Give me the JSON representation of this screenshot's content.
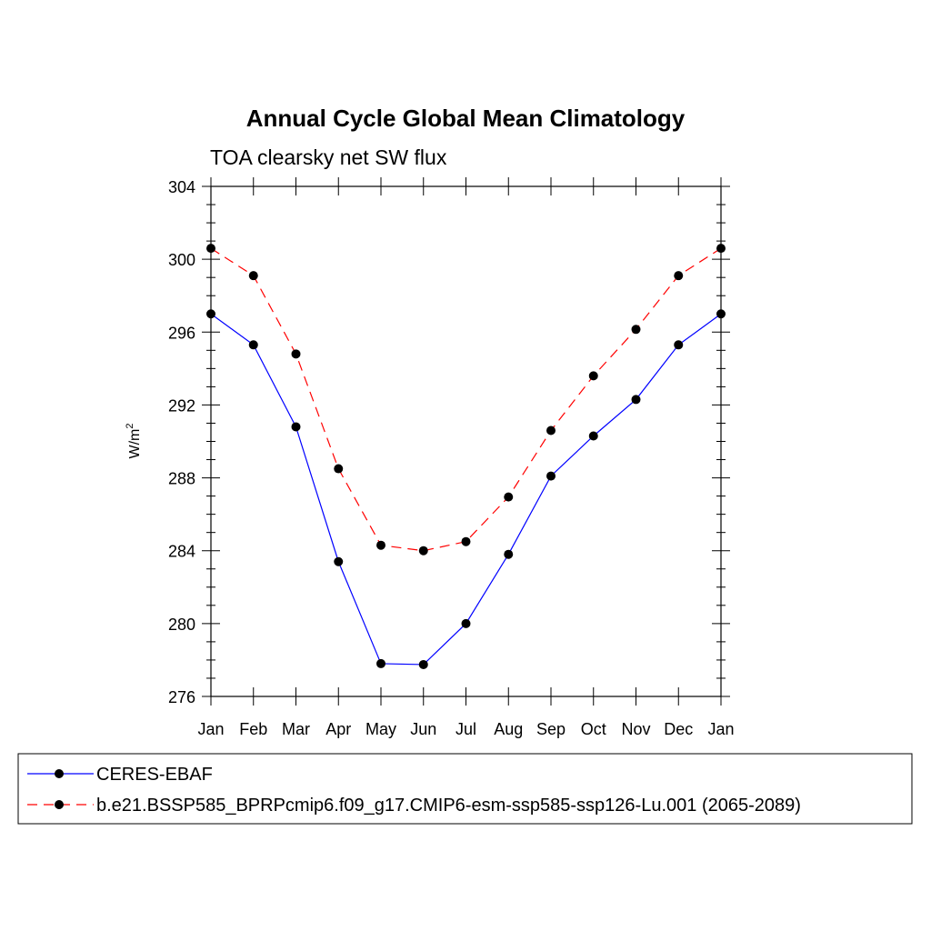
{
  "chart_data": {
    "type": "line",
    "title": "Annual Cycle Global Mean Climatology",
    "subtitle": "TOA clearsky net SW flux",
    "ylabel": "W/m",
    "ylabel_superscript": "2",
    "xlabel": "",
    "categories": [
      "Jan",
      "Feb",
      "Mar",
      "Apr",
      "May",
      "Jun",
      "Jul",
      "Aug",
      "Sep",
      "Oct",
      "Nov",
      "Dec",
      "Jan"
    ],
    "ylim": [
      276,
      304
    ],
    "yticks": [
      "276",
      "280",
      "284",
      "288",
      "292",
      "296",
      "300",
      "304"
    ],
    "grid": false,
    "legend_position": "bottom",
    "series": [
      {
        "name": "CERES-EBAF",
        "color": "#0000ff",
        "dash": "solid",
        "marker": "circle",
        "values": [
          297.0,
          295.3,
          290.8,
          283.4,
          277.8,
          277.75,
          280.0,
          283.8,
          288.1,
          290.3,
          292.3,
          295.3,
          297.0
        ]
      },
      {
        "name": "b.e21.BSSP585_BPRPcmip6.f09_g17.CMIP6-esm-ssp585-ssp126-Lu.001 (2065-2089)",
        "color": "#ff0000",
        "dash": "dashed",
        "marker": "circle",
        "values": [
          300.6,
          299.1,
          294.8,
          288.5,
          284.3,
          284.0,
          284.5,
          286.95,
          290.6,
          293.6,
          296.15,
          299.1,
          300.6
        ]
      }
    ]
  }
}
